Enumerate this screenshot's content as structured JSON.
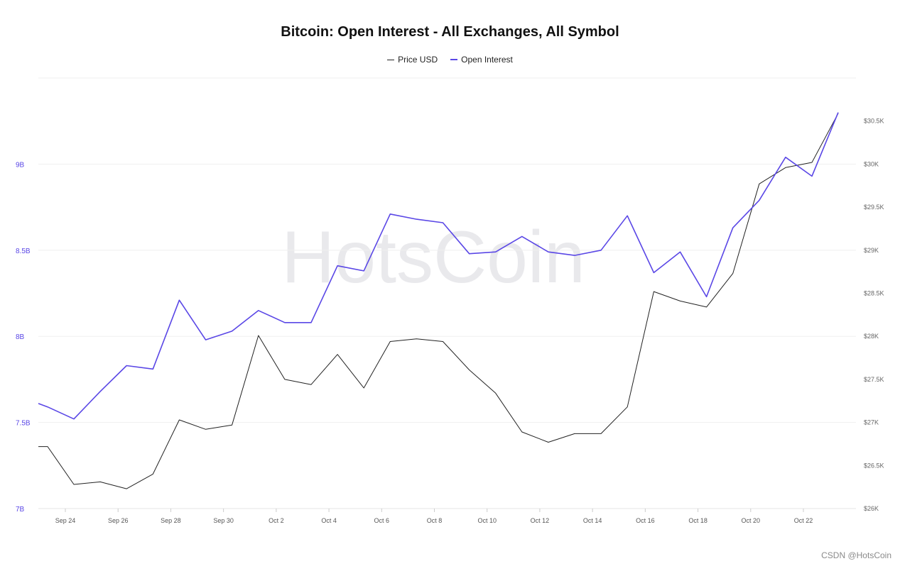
{
  "chart_data": {
    "type": "line",
    "title": "Bitcoin: Open Interest - All Exchanges, All Symbol",
    "watermark": "HotsCoin",
    "legend_position": "top-center",
    "grid": true,
    "x_tick_labels": [
      "Sep 24",
      "Sep 26",
      "Sep 28",
      "Sep 30",
      "Oct 2",
      "Oct 4",
      "Oct 6",
      "Oct 8",
      "Oct 10",
      "Oct 12",
      "Oct 14",
      "Oct 16",
      "Oct 18",
      "Oct 20",
      "Oct 22"
    ],
    "x": [
      "Sep 23",
      "Sep 23",
      "Sep 24",
      "Sep 25",
      "Sep 26",
      "Sep 27",
      "Sep 28",
      "Sep 29",
      "Sep 30",
      "Oct 1",
      "Oct 2",
      "Oct 3",
      "Oct 4",
      "Oct 5",
      "Oct 6",
      "Oct 7",
      "Oct 8",
      "Oct 9",
      "Oct 10",
      "Oct 11",
      "Oct 12",
      "Oct 13",
      "Oct 14",
      "Oct 15",
      "Oct 16",
      "Oct 17",
      "Oct 18",
      "Oct 19",
      "Oct 20",
      "Oct 21",
      "Oct 22",
      "Oct 23"
    ],
    "left_axis": {
      "ticks": [
        "7B",
        "7.5B",
        "8B",
        "8.5B",
        "9B"
      ],
      "ylim": [
        7,
        9.5
      ],
      "color": "#5a47e6"
    },
    "right_axis": {
      "ticks": [
        "$26K",
        "$26.5K",
        "$27K",
        "$27.5K",
        "$28K",
        "$28.5K",
        "$29K",
        "$29.5K",
        "$30K",
        "$30.5K"
      ],
      "ylim": [
        26000,
        31000
      ]
    },
    "series": [
      {
        "name": "Open Interest",
        "axis": "left",
        "color": "#5a47e6",
        "values": [
          7.61,
          7.59,
          7.52,
          7.68,
          7.83,
          7.81,
          8.21,
          7.98,
          8.03,
          8.15,
          8.08,
          8.08,
          8.41,
          8.38,
          8.71,
          8.68,
          8.66,
          8.48,
          8.49,
          8.58,
          8.49,
          8.47,
          8.5,
          8.7,
          8.37,
          8.49,
          8.23,
          8.63,
          8.79,
          9.04,
          8.93,
          9.3
        ]
      },
      {
        "name": "Price USD",
        "axis": "right",
        "color": "#222222",
        "values": [
          26720,
          26720,
          26280,
          26310,
          26230,
          26400,
          27030,
          26920,
          26970,
          28010,
          27500,
          27440,
          27790,
          27400,
          27940,
          27970,
          27940,
          27610,
          27340,
          26890,
          26770,
          26870,
          26870,
          27180,
          28520,
          28410,
          28340,
          28730,
          29770,
          29960,
          30020,
          30590
        ]
      }
    ]
  },
  "footer": {
    "credit": "CSDN @HotsCoin"
  }
}
